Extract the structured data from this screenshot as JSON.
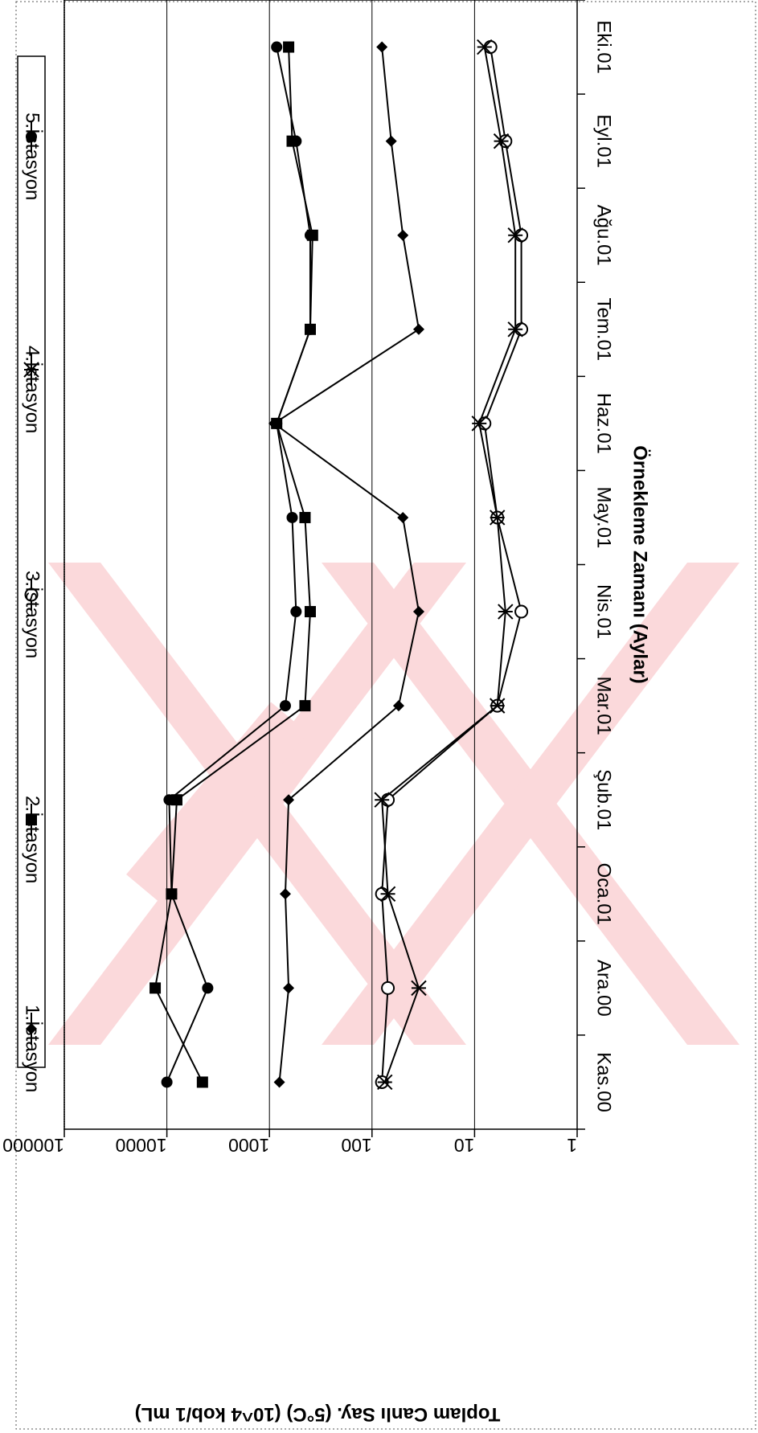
{
  "chart_data": {
    "type": "line",
    "title": "",
    "xlabel": "Örnekleme Zamanı (Aylar)",
    "ylabel": "Toplam Canlı Say. (5°C) (10^4 kob/1 mL)",
    "y_scale": "log",
    "ylim": [
      1,
      100000
    ],
    "y_ticks": [
      "1",
      "10",
      "100",
      "1000",
      "10000",
      "100000"
    ],
    "y_gridlines": [
      10,
      100,
      1000,
      10000
    ],
    "categories": [
      "Kas.00",
      "Ara.00",
      "Oca.01",
      "Şub.01",
      "Mar.01",
      "Nis.01",
      "May.01",
      "Haz.01",
      "Tem.01",
      "Ağu.01",
      "Eyl.01",
      "Eki.01"
    ],
    "legend_position": "top",
    "rotated": "chart rendered rotated 90° clockwise on the page",
    "series": [
      {
        "name": "1.İstasyon",
        "marker": "diamond",
        "values": [
          800,
          650,
          700,
          650,
          55,
          35,
          50,
          900,
          35,
          50,
          65,
          80
        ]
      },
      {
        "name": "2.İstasyon",
        "marker": "square",
        "values": [
          4500,
          13000,
          9000,
          8000,
          450,
          400,
          450,
          850,
          400,
          380,
          600,
          650
        ]
      },
      {
        "name": "3.İstasyon",
        "marker": "circle-open",
        "values": [
          80,
          70,
          80,
          70,
          6,
          3.5,
          6,
          8,
          3.5,
          3.5,
          5,
          7
        ]
      },
      {
        "name": "4.İstasyon",
        "marker": "star",
        "values": [
          75,
          35,
          70,
          80,
          6,
          5,
          6,
          9,
          4,
          4,
          5.5,
          8
        ]
      },
      {
        "name": "5.İstasyon",
        "marker": "circle-filled",
        "values": [
          10000,
          4000,
          9000,
          9500,
          700,
          550,
          600,
          850,
          400,
          400,
          550,
          850
        ]
      }
    ]
  },
  "colors": {
    "series": "#000000",
    "grid": "#000000",
    "watermark": "#f8c8cc",
    "background": "#ffffff"
  }
}
